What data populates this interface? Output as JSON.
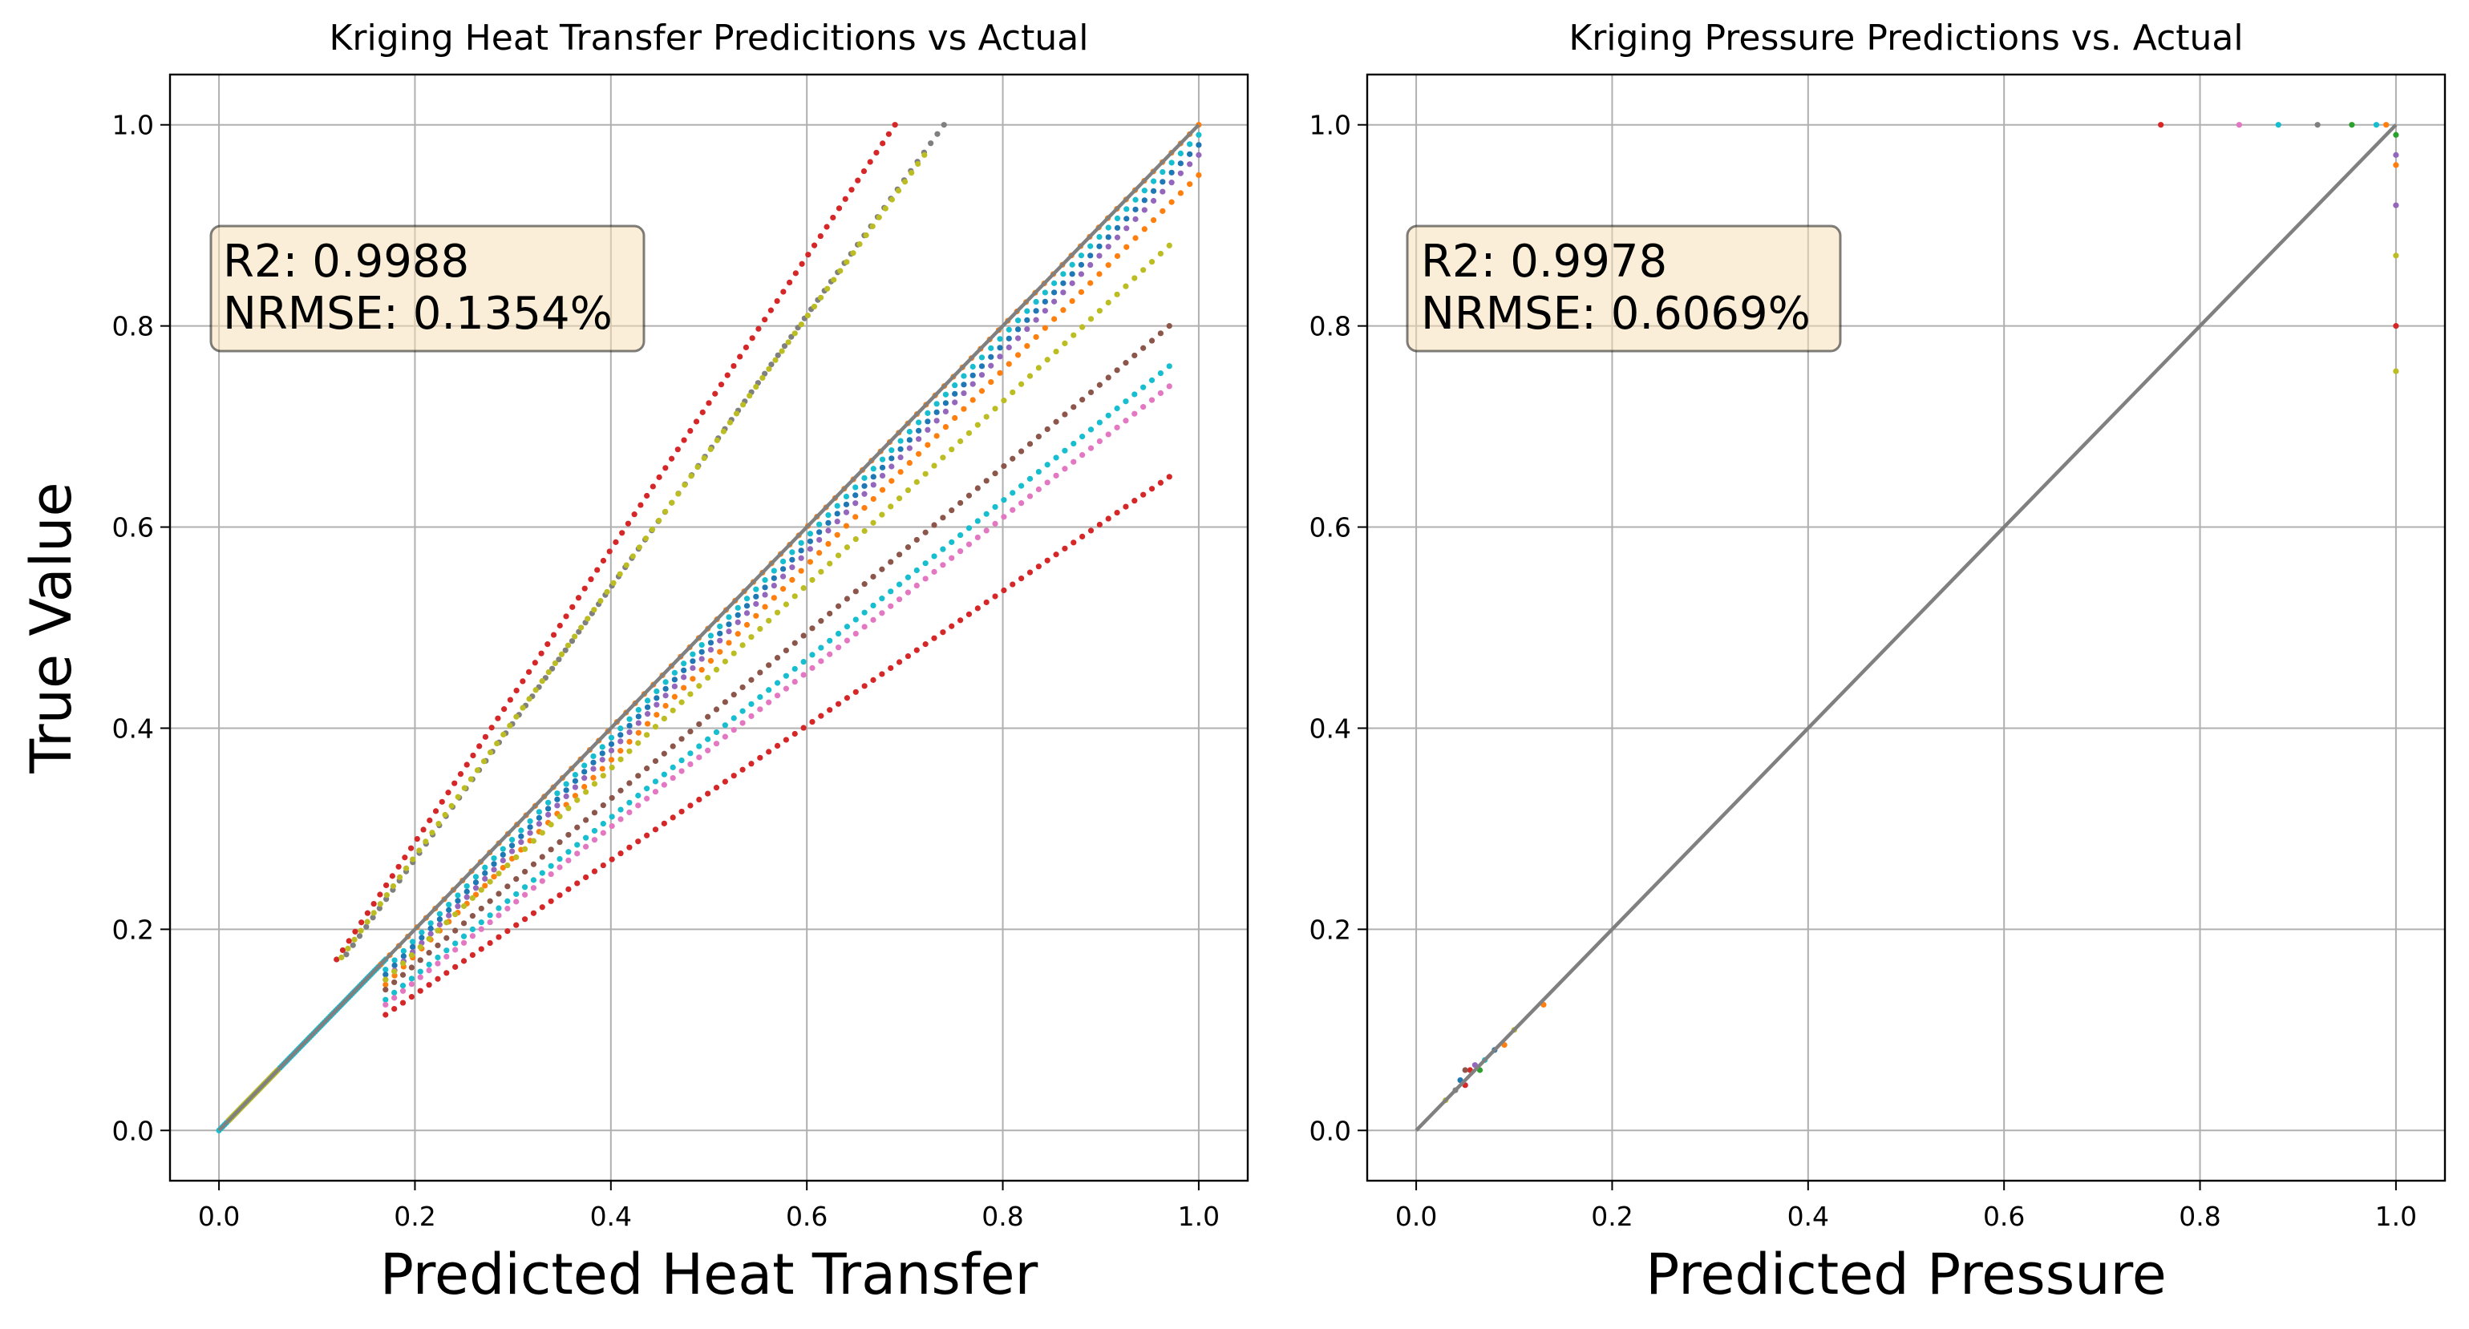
{
  "figure": {
    "ylabel": "True Value"
  },
  "colors": {
    "identity_line": "#808080",
    "grid": "#b0b0b0",
    "annotation_fill": "#f5deb3",
    "annotation_edge": "#000000",
    "palette": [
      "#1f77b4",
      "#ff7f0e",
      "#2ca02c",
      "#d62728",
      "#9467bd",
      "#8c564b",
      "#e377c2",
      "#7f7f7f",
      "#bcbd22",
      "#17becf"
    ]
  },
  "chart_data": [
    {
      "type": "scatter",
      "title": "Kriging Heat Transfer Predicitions vs Actual",
      "xlabel": "Predicted Heat Transfer",
      "ylabel": "True Value",
      "xlim": [
        -0.05,
        1.05
      ],
      "ylim": [
        -0.05,
        1.05
      ],
      "xticks": [
        "0.0",
        "0.2",
        "0.4",
        "0.6",
        "0.8",
        "1.0"
      ],
      "yticks": [
        "0.0",
        "0.2",
        "0.4",
        "0.6",
        "0.8",
        "1.0"
      ],
      "grid": true,
      "annotation": {
        "r2": "R2: 0.9988",
        "nrmse": "NRMSE: 0.1354%"
      },
      "reference_line": {
        "from": [
          0,
          0
        ],
        "to": [
          1,
          1
        ]
      },
      "series_trends": [
        {
          "color_index": 3,
          "start": [
            0.12,
            0.17
          ],
          "end": [
            0.69,
            1.0
          ]
        },
        {
          "color_index": 7,
          "start": [
            0.13,
            0.175
          ],
          "end": [
            0.74,
            1.0
          ]
        },
        {
          "color_index": 8,
          "start": [
            0.125,
            0.172
          ],
          "end": [
            0.72,
            0.97
          ]
        },
        {
          "color_index": 9,
          "start": [
            0.0,
            0.0
          ],
          "end": [
            0.17,
            0.17
          ]
        },
        {
          "color_index": 8,
          "start": [
            0.01,
            0.01
          ],
          "end": [
            0.06,
            0.06
          ]
        },
        {
          "color_index": 1,
          "start": [
            0.165,
            0.165
          ],
          "end": [
            1.0,
            1.0
          ]
        },
        {
          "color_index": 9,
          "start": [
            0.17,
            0.16
          ],
          "end": [
            1.0,
            0.99
          ]
        },
        {
          "color_index": 0,
          "start": [
            0.17,
            0.155
          ],
          "end": [
            1.0,
            0.98
          ]
        },
        {
          "color_index": 4,
          "start": [
            0.17,
            0.15
          ],
          "end": [
            1.0,
            0.97
          ]
        },
        {
          "color_index": 1,
          "start": [
            0.17,
            0.145
          ],
          "end": [
            1.0,
            0.95
          ]
        },
        {
          "color_index": 8,
          "start": [
            0.17,
            0.15
          ],
          "end": [
            0.97,
            0.88
          ]
        },
        {
          "color_index": 5,
          "start": [
            0.17,
            0.14
          ],
          "end": [
            0.97,
            0.8
          ]
        },
        {
          "color_index": 9,
          "start": [
            0.17,
            0.13
          ],
          "end": [
            0.97,
            0.76
          ]
        },
        {
          "color_index": 6,
          "start": [
            0.17,
            0.125
          ],
          "end": [
            0.97,
            0.74
          ]
        },
        {
          "color_index": 3,
          "start": [
            0.17,
            0.115
          ],
          "end": [
            0.97,
            0.65
          ]
        }
      ]
    },
    {
      "type": "scatter",
      "title": "Kriging Pressure Predictions vs. Actual",
      "xlabel": "Predicted Pressure",
      "ylabel": "",
      "xlim": [
        -0.05,
        1.05
      ],
      "ylim": [
        -0.05,
        1.05
      ],
      "xticks": [
        "0.0",
        "0.2",
        "0.4",
        "0.6",
        "0.8",
        "1.0"
      ],
      "yticks": [
        "0.0",
        "0.2",
        "0.4",
        "0.6",
        "0.8",
        "1.0"
      ],
      "grid": true,
      "annotation": {
        "r2": "R2: 0.9978",
        "nrmse": "NRMSE: 0.6069%"
      },
      "reference_line": {
        "from": [
          0,
          0
        ],
        "to": [
          1,
          1
        ]
      },
      "points": [
        {
          "x": 0.76,
          "y": 1.0,
          "c": 3
        },
        {
          "x": 0.84,
          "y": 1.0,
          "c": 6
        },
        {
          "x": 0.88,
          "y": 1.0,
          "c": 9
        },
        {
          "x": 0.92,
          "y": 1.0,
          "c": 7
        },
        {
          "x": 0.955,
          "y": 1.0,
          "c": 2
        },
        {
          "x": 0.98,
          "y": 1.0,
          "c": 9
        },
        {
          "x": 0.99,
          "y": 1.0,
          "c": 1
        },
        {
          "x": 1.0,
          "y": 0.99,
          "c": 2
        },
        {
          "x": 1.0,
          "y": 0.97,
          "c": 4
        },
        {
          "x": 1.0,
          "y": 0.96,
          "c": 1
        },
        {
          "x": 1.0,
          "y": 0.92,
          "c": 4
        },
        {
          "x": 1.0,
          "y": 0.87,
          "c": 8
        },
        {
          "x": 1.0,
          "y": 0.8,
          "c": 3
        },
        {
          "x": 1.0,
          "y": 0.755,
          "c": 8
        },
        {
          "x": 0.13,
          "y": 0.125,
          "c": 1
        },
        {
          "x": 0.1,
          "y": 0.1,
          "c": 8
        },
        {
          "x": 0.09,
          "y": 0.085,
          "c": 1
        },
        {
          "x": 0.08,
          "y": 0.08,
          "c": 0
        },
        {
          "x": 0.07,
          "y": 0.07,
          "c": 9
        },
        {
          "x": 0.065,
          "y": 0.06,
          "c": 2
        },
        {
          "x": 0.06,
          "y": 0.065,
          "c": 4
        },
        {
          "x": 0.055,
          "y": 0.06,
          "c": 3
        },
        {
          "x": 0.05,
          "y": 0.06,
          "c": 5
        },
        {
          "x": 0.05,
          "y": 0.045,
          "c": 3
        },
        {
          "x": 0.045,
          "y": 0.05,
          "c": 0
        },
        {
          "x": 0.04,
          "y": 0.04,
          "c": 7
        },
        {
          "x": 0.03,
          "y": 0.03,
          "c": 8
        }
      ]
    }
  ]
}
